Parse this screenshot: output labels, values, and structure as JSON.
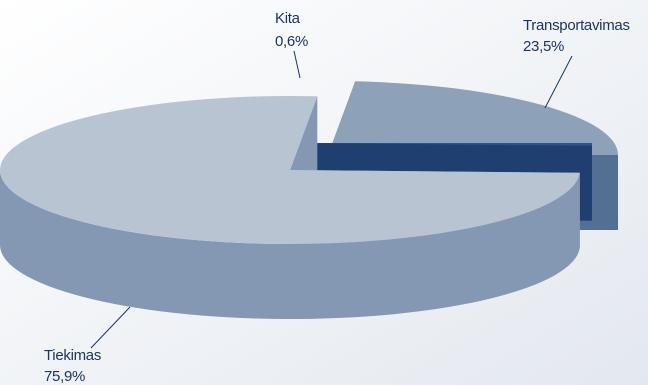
{
  "chart_data": {
    "type": "pie",
    "title": "",
    "slices": [
      {
        "label": "Transportavimas",
        "value": 23.5,
        "value_label": "23,5%"
      },
      {
        "label": "Tiekimas",
        "value": 75.9,
        "value_label": "75,9%"
      },
      {
        "label": "Kita",
        "value": 0.6,
        "value_label": "0,6%"
      }
    ],
    "exploded": true,
    "three_d": true,
    "legend": "none",
    "colors": {
      "transportavimas_top": "#8da1b8",
      "transportavimas_side": "#536f93",
      "tiekimas_top": "#b9c4d3",
      "tiekimas_side": "#8598b3",
      "kita_top": "#2c5490",
      "kita_side": "#1f3f70",
      "text": "#1c3561",
      "background_light": "#ffffff",
      "background_dark": "#e3e8ef"
    }
  }
}
